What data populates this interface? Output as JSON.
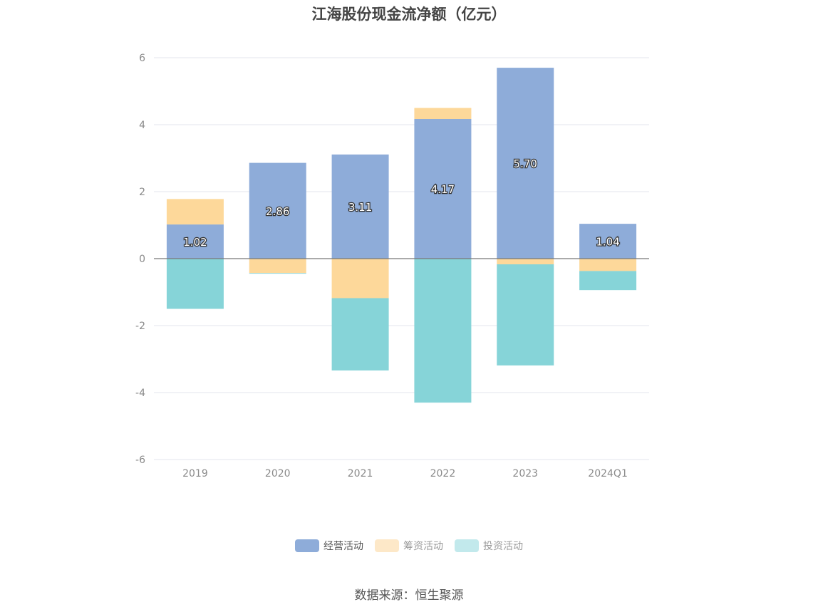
{
  "chart_data": {
    "type": "bar",
    "stacked": true,
    "title": "江海股份现金流净额（亿元）",
    "categories": [
      "2019",
      "2020",
      "2021",
      "2022",
      "2023",
      "2024Q1"
    ],
    "series": [
      {
        "name": "经营活动",
        "color": "#8eacd9",
        "values": [
          1.02,
          2.86,
          3.11,
          4.17,
          5.7,
          1.04
        ],
        "labels": [
          "1.02",
          "2.86",
          "3.11",
          "4.17",
          "5.70",
          "1.04"
        ]
      },
      {
        "name": "筹资活动",
        "color": "#fdd89a",
        "values": [
          0.76,
          -0.43,
          -1.18,
          0.33,
          -0.17,
          -0.37
        ]
      },
      {
        "name": "投资活动",
        "color": "#86d4d8",
        "values": [
          -1.5,
          -0.02,
          -2.16,
          -4.3,
          -3.02,
          -0.57
        ]
      }
    ],
    "ylim": [
      -6,
      6
    ],
    "yticks": [
      6,
      4,
      2,
      0,
      -2,
      -4,
      -6
    ],
    "grid": true,
    "legend_position": "bottom"
  },
  "legend": {
    "items": [
      {
        "label": "经营活动",
        "color": "#8eacd9"
      },
      {
        "label": "筹资活动",
        "color": "#fde8c8"
      },
      {
        "label": "投资活动",
        "color": "#c2e9ec"
      }
    ]
  },
  "source_note": "数据来源：恒生聚源"
}
